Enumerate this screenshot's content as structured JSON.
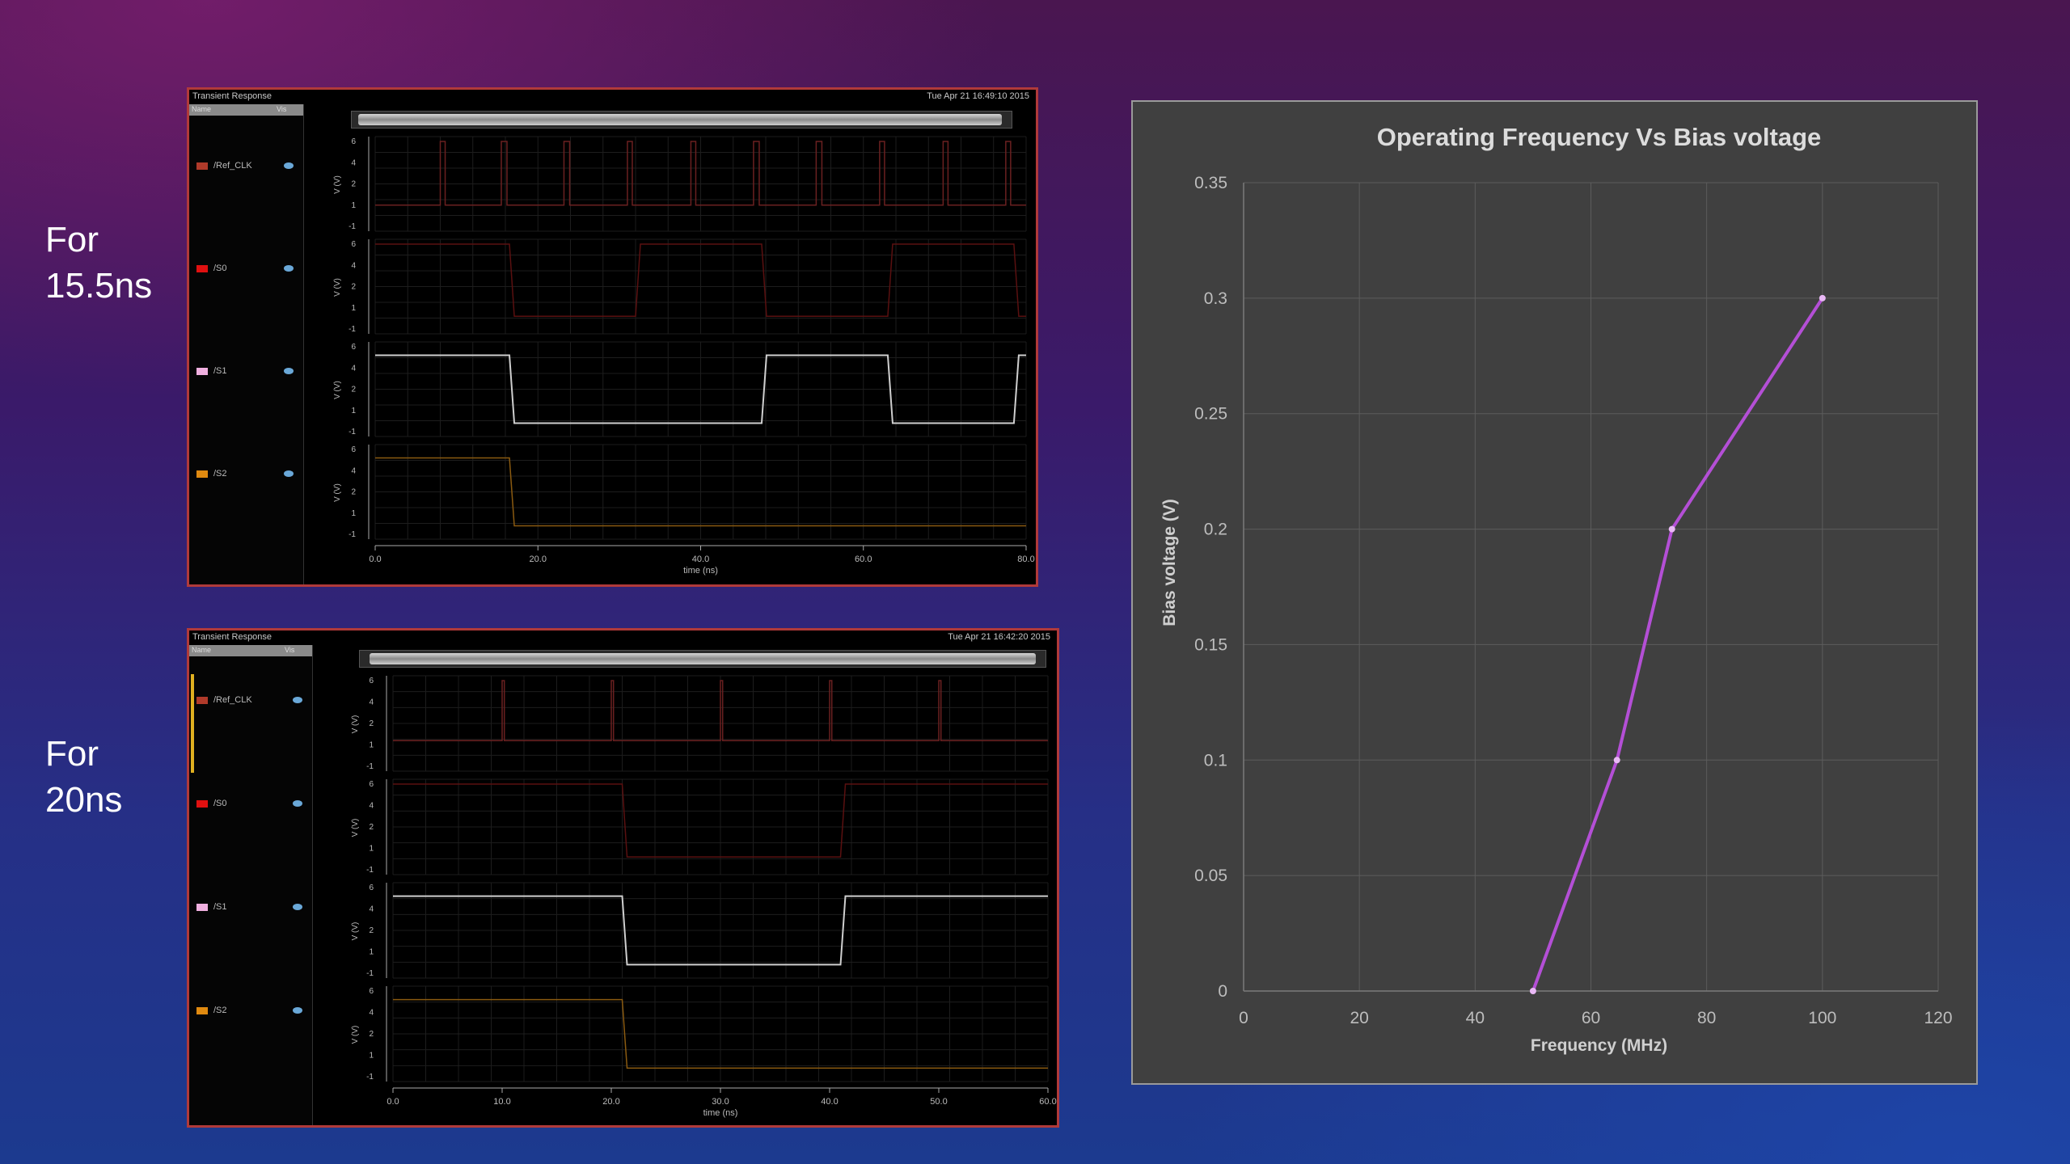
{
  "slide": {
    "label_top": [
      "For",
      "15.5ns"
    ],
    "label_bottom": [
      "For",
      "20ns"
    ]
  },
  "waveforms": [
    {
      "title": "Transient Response",
      "date": "Tue Apr 21 16:49:10 2015",
      "legend_header": [
        "Name",
        "Vis"
      ],
      "signals": [
        {
          "name": "/Ref_CLK",
          "color": "#b03a2a"
        },
        {
          "name": "/S0",
          "color": "#e01010"
        },
        {
          "name": "/S1",
          "color": "#f0b0e0"
        },
        {
          "name": "/S2",
          "color": "#e08a10"
        }
      ],
      "yticks": [
        "6",
        "4",
        "2",
        "1",
        "-1"
      ],
      "ylabel": "V (V)",
      "xticks": [
        "0.0",
        "20.0",
        "40.0",
        "60.0",
        "80.0"
      ],
      "xlabel": "time (ns)",
      "xmax": 80
    },
    {
      "title": "Transient Response",
      "date": "Tue Apr 21 16:42:20 2015",
      "legend_header": [
        "Name",
        "Vis"
      ],
      "signals": [
        {
          "name": "/Ref_CLK",
          "color": "#b03a2a"
        },
        {
          "name": "/S0",
          "color": "#e01010"
        },
        {
          "name": "/S1",
          "color": "#f0b0e0"
        },
        {
          "name": "/S2",
          "color": "#e08a10"
        }
      ],
      "yticks": [
        "6",
        "4",
        "2",
        "1",
        "-1"
      ],
      "ylabel": "V (V)",
      "xticks": [
        "0.0",
        "10.0",
        "20.0",
        "30.0",
        "40.0",
        "50.0",
        "60.0"
      ],
      "xlabel": "time (ns)",
      "xmax": 60
    }
  ],
  "chart_data": {
    "type": "line",
    "title": "Operating Frequency Vs Bias voltage",
    "xlabel": "Frequency (MHz)",
    "ylabel": "Bias voltage (V)",
    "xlim": [
      0,
      120
    ],
    "ylim": [
      0,
      0.35
    ],
    "xticks": [
      0,
      20,
      40,
      60,
      80,
      100,
      120
    ],
    "yticks": [
      0,
      0.05,
      0.1,
      0.15,
      0.2,
      0.25,
      0.3,
      0.35
    ],
    "grid": true,
    "x": [
      50,
      64.5,
      74,
      100
    ],
    "y": [
      0,
      0.1,
      0.2,
      0.3
    ],
    "line_color": "#b44fd6"
  }
}
